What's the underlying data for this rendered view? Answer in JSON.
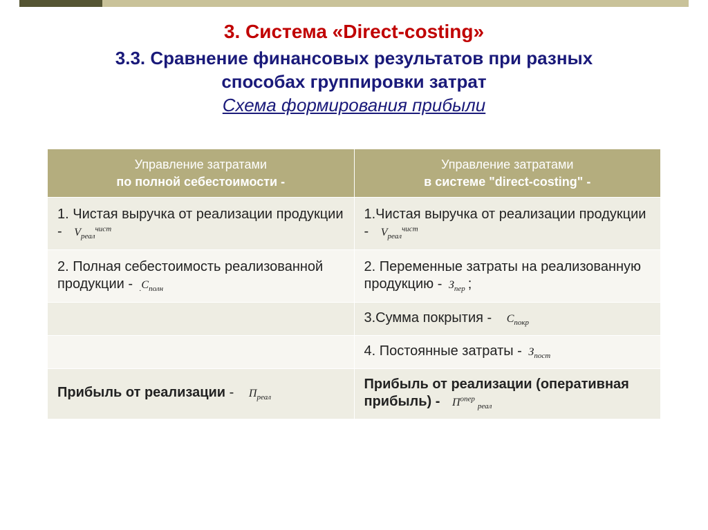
{
  "colors": {
    "title_main": "#c00000",
    "title_sub": "#1a1a7a",
    "header_bg": "#b4ad7e",
    "header_text": "#ffffff",
    "row_a_bg": "#eeede3",
    "row_b_bg": "#f7f6f1",
    "text": "#222222",
    "accent_dark": "#555533",
    "accent_light": "#c9c299"
  },
  "title": {
    "main": "3. Система  «Direct-costing»",
    "sub_prefix": "3.3.  ",
    "sub_line1": "Сравнение финансовых результатов при разных",
    "sub_line2": "способах группировки затрат",
    "italic": "Схема формирования прибыли"
  },
  "headers": {
    "left_line1": "Управление затратами",
    "left_line2": "по полной себестоимости -",
    "right_line1": "Управление затратами",
    "right_line2": "в системе \"direct-costing\" -"
  },
  "rows": {
    "r1": {
      "left_text": "1. Чистая выручка от реализации продукции -",
      "left_formula_base": "V",
      "left_formula_sub": "реал",
      "left_formula_sup": "чист",
      "right_text": "1.Чистая выручка от реализации продукции -",
      "right_formula_base": "V",
      "right_formula_sub": "реал",
      "right_formula_sup": "чист"
    },
    "r2": {
      "left_text": "2. Полная себестоимость реализованной продукции -",
      "left_formula_base": "С",
      "left_formula_sub": "полн",
      "right_text": "2. Переменные затраты на реализованную продукцию -",
      "right_formula_base": "З",
      "right_formula_sub": "пер",
      "right_suffix": ";"
    },
    "r3": {
      "right_text": "3.Сумма покрытия -",
      "right_formula_base": "С",
      "right_formula_sub": "покр"
    },
    "r4": {
      "right_text": "4. Постоянные затраты -",
      "right_formula_base": "З",
      "right_formula_sub": "пост"
    },
    "r5": {
      "left_text": "Прибыль от реализации",
      "left_dash": " -",
      "left_formula_base": "П",
      "left_formula_sub": "реал",
      "right_text": "Прибыль от реализации (оперативная прибыль) -",
      "right_formula_base": "П",
      "right_formula_sub": "реал",
      "right_formula_sup": "опер"
    }
  }
}
